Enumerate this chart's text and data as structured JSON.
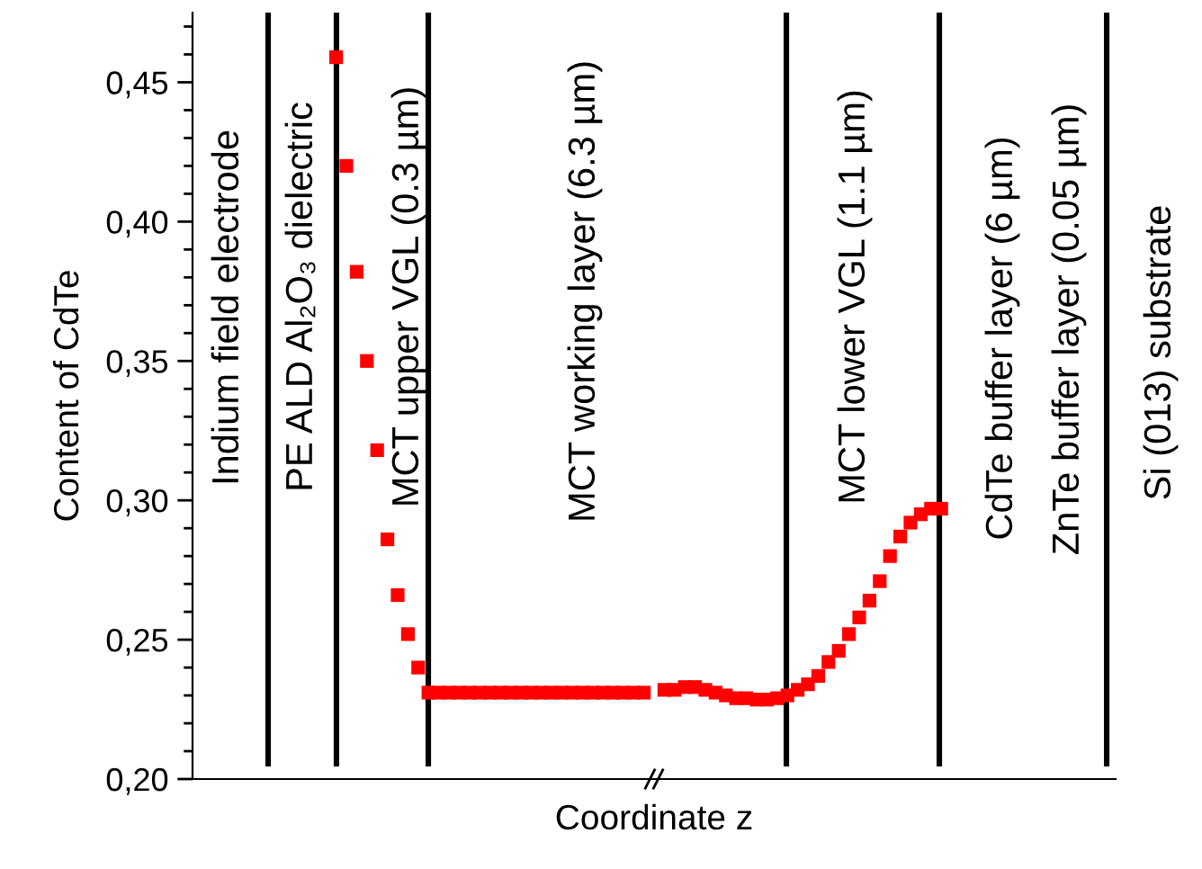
{
  "chart_data": {
    "type": "scatter",
    "xlabel": "Coordinate z",
    "ylabel": "Content of CdTe",
    "categories": [
      null,
      null,
      null,
      null,
      null,
      null,
      null,
      null,
      null,
      null,
      null,
      null,
      null,
      null,
      null,
      null,
      null,
      null,
      null,
      null,
      null,
      null,
      null,
      null,
      null,
      null,
      null,
      null,
      null,
      null,
      null,
      null,
      null,
      null,
      null,
      null,
      null,
      null,
      null,
      null,
      null,
      null,
      null,
      null,
      null,
      null,
      null,
      null,
      null,
      null,
      null,
      null,
      null,
      null,
      null,
      null,
      null,
      null,
      null,
      null,
      null,
      null,
      null,
      null,
      null,
      null,
      null,
      null,
      null,
      null,
      null,
      null,
      null,
      null,
      null,
      null,
      null,
      null,
      null,
      null,
      null,
      null,
      null,
      null,
      null,
      null,
      null,
      null,
      null,
      null,
      null
    ],
    "series": [
      {
        "color": "#ff0000",
        "values": [
          null,
          null,
          null,
          null,
          null,
          null,
          null,
          null,
          null,
          null,
          null,
          null,
          null,
          null,
          0.459,
          0.42,
          0.382,
          0.35,
          0.318,
          0.286,
          0.266,
          0.252,
          0.24,
          0.231,
          0.231,
          0.231,
          0.231,
          0.231,
          0.231,
          0.231,
          0.231,
          0.231,
          0.231,
          0.231,
          0.231,
          0.231,
          0.231,
          0.231,
          0.231,
          0.231,
          0.231,
          0.231,
          0.231,
          0.231,
          0.231,
          null,
          0.232,
          0.232,
          0.233,
          0.233,
          0.232,
          0.231,
          0.23,
          0.229,
          0.229,
          0.2285,
          0.2285,
          0.229,
          0.23,
          0.232,
          0.234,
          0.237,
          0.242,
          0.246,
          0.252,
          0.258,
          0.264,
          0.271,
          0.28,
          0.287,
          0.292,
          0.295,
          0.297,
          0.297,
          null,
          null,
          null,
          null,
          null,
          null,
          null,
          null,
          null,
          null,
          null,
          null,
          null,
          null,
          null,
          null,
          null
        ]
      }
    ],
    "marker": "square",
    "ylim": [
      0.2,
      0.475
    ],
    "yticks": [
      {
        "value": 0.2,
        "label": "0,20"
      },
      {
        "value": 0.25,
        "label": "0,25"
      },
      {
        "value": 0.3,
        "label": "0,30"
      },
      {
        "value": 0.35,
        "label": "0,35"
      },
      {
        "value": 0.4,
        "label": "0,40"
      },
      {
        "value": 0.45,
        "label": "0,45"
      }
    ],
    "tick_labels": "y",
    "grid": "x",
    "legend": false,
    "annotations": [
      "Indium field electrode",
      "PE ALD Al₂O₃ dielectric",
      "MCT upper VGL (0.3 µm)",
      "MCT working layer (6.3 µm)",
      "MCT lower VGL (1.1 µm)",
      "CdTe buffer layer (6 µm)",
      "ZnTe buffer layer (0.05 µm)",
      "Si (013) substrate"
    ]
  }
}
